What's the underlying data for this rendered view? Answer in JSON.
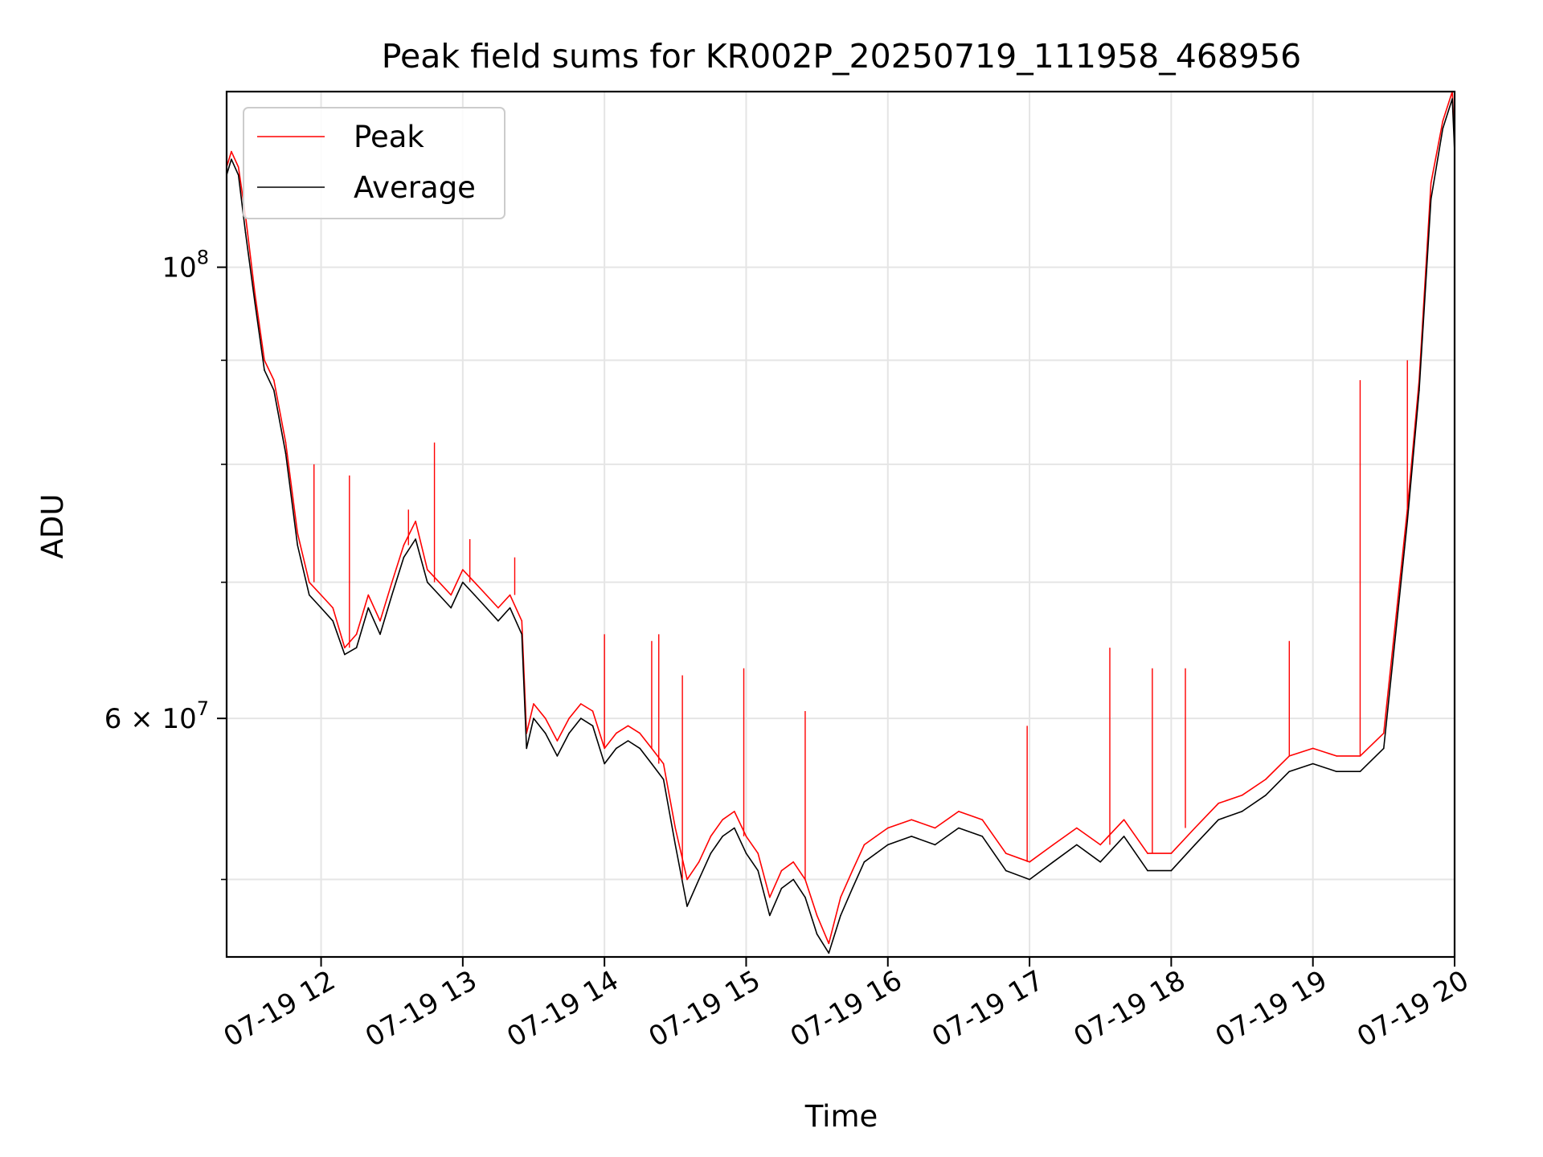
{
  "chart_data": {
    "type": "line",
    "title": "Peak field sums for KR002P_20250719_111958_468956",
    "xlabel": "Time",
    "ylabel": "ADU",
    "yscale": "log",
    "grid": true,
    "legend_position": "upper-left",
    "x_range": [
      "2025-07-19 11:20",
      "2025-07-19 20:00"
    ],
    "y_range": [
      45800000,
      122000000
    ],
    "x_ticks": [
      {
        "value": "2025-07-19 12:00",
        "label": "07-19 12"
      },
      {
        "value": "2025-07-19 13:00",
        "label": "07-19 13"
      },
      {
        "value": "2025-07-19 14:00",
        "label": "07-19 14"
      },
      {
        "value": "2025-07-19 15:00",
        "label": "07-19 15"
      },
      {
        "value": "2025-07-19 16:00",
        "label": "07-19 16"
      },
      {
        "value": "2025-07-19 17:00",
        "label": "07-19 17"
      },
      {
        "value": "2025-07-19 18:00",
        "label": "07-19 18"
      },
      {
        "value": "2025-07-19 19:00",
        "label": "07-19 19"
      },
      {
        "value": "2025-07-19 20:00",
        "label": "07-19 20"
      }
    ],
    "y_major_ticks": [
      {
        "value": 100000000,
        "base": "10",
        "exp": "8",
        "label": "10^8"
      },
      {
        "value": 60000000,
        "mant": "6",
        "base": "10",
        "exp": "7",
        "label": "6 × 10^7"
      }
    ],
    "y_minor_ticks": [
      50000000,
      70000000,
      80000000,
      90000000
    ],
    "series": [
      {
        "name": "Peak",
        "color": "#ff0000",
        "points": [
          [
            "2025-07-19 11:20",
            112000000
          ],
          [
            "2025-07-19 11:22",
            114000000
          ],
          [
            "2025-07-19 11:25",
            112000000
          ],
          [
            "2025-07-19 11:28",
            106000000
          ],
          [
            "2025-07-19 11:32",
            97000000
          ],
          [
            "2025-07-19 11:36",
            90000000
          ],
          [
            "2025-07-19 11:40",
            88000000
          ],
          [
            "2025-07-19 11:45",
            82000000
          ],
          [
            "2025-07-19 11:50",
            74000000
          ],
          [
            "2025-07-19 11:55",
            70000000
          ],
          [
            "2025-07-19 12:00",
            69000000
          ],
          [
            "2025-07-19 12:05",
            68000000
          ],
          [
            "2025-07-19 12:10",
            65000000
          ],
          [
            "2025-07-19 12:15",
            66000000
          ],
          [
            "2025-07-19 12:20",
            69000000
          ],
          [
            "2025-07-19 12:25",
            67000000
          ],
          [
            "2025-07-19 12:30",
            70000000
          ],
          [
            "2025-07-19 12:35",
            73000000
          ],
          [
            "2025-07-19 12:40",
            75000000
          ],
          [
            "2025-07-19 12:45",
            71000000
          ],
          [
            "2025-07-19 12:50",
            70000000
          ],
          [
            "2025-07-19 12:55",
            69000000
          ],
          [
            "2025-07-19 13:00",
            71000000
          ],
          [
            "2025-07-19 13:05",
            70000000
          ],
          [
            "2025-07-19 13:10",
            69000000
          ],
          [
            "2025-07-19 13:15",
            68000000
          ],
          [
            "2025-07-19 13:20",
            69000000
          ],
          [
            "2025-07-19 13:25",
            67000000
          ],
          [
            "2025-07-19 13:27",
            59000000
          ],
          [
            "2025-07-19 13:30",
            61000000
          ],
          [
            "2025-07-19 13:35",
            60000000
          ],
          [
            "2025-07-19 13:40",
            58500000
          ],
          [
            "2025-07-19 13:45",
            60000000
          ],
          [
            "2025-07-19 13:50",
            61000000
          ],
          [
            "2025-07-19 13:55",
            60500000
          ],
          [
            "2025-07-19 14:00",
            58000000
          ],
          [
            "2025-07-19 14:05",
            59000000
          ],
          [
            "2025-07-19 14:10",
            59500000
          ],
          [
            "2025-07-19 14:15",
            59000000
          ],
          [
            "2025-07-19 14:20",
            58000000
          ],
          [
            "2025-07-19 14:25",
            57000000
          ],
          [
            "2025-07-19 14:30",
            53000000
          ],
          [
            "2025-07-19 14:35",
            50000000
          ],
          [
            "2025-07-19 14:40",
            51000000
          ],
          [
            "2025-07-19 14:45",
            52500000
          ],
          [
            "2025-07-19 14:50",
            53500000
          ],
          [
            "2025-07-19 14:55",
            54000000
          ],
          [
            "2025-07-19 15:00",
            52500000
          ],
          [
            "2025-07-19 15:05",
            51500000
          ],
          [
            "2025-07-19 15:10",
            49000000
          ],
          [
            "2025-07-19 15:15",
            50500000
          ],
          [
            "2025-07-19 15:20",
            51000000
          ],
          [
            "2025-07-19 15:25",
            50000000
          ],
          [
            "2025-07-19 15:30",
            48000000
          ],
          [
            "2025-07-19 15:35",
            46500000
          ],
          [
            "2025-07-19 15:40",
            49000000
          ],
          [
            "2025-07-19 15:45",
            50500000
          ],
          [
            "2025-07-19 15:50",
            52000000
          ],
          [
            "2025-07-19 15:55",
            52500000
          ],
          [
            "2025-07-19 16:00",
            53000000
          ],
          [
            "2025-07-19 16:10",
            53500000
          ],
          [
            "2025-07-19 16:20",
            53000000
          ],
          [
            "2025-07-19 16:30",
            54000000
          ],
          [
            "2025-07-19 16:40",
            53500000
          ],
          [
            "2025-07-19 16:50",
            51500000
          ],
          [
            "2025-07-19 17:00",
            51000000
          ],
          [
            "2025-07-19 17:10",
            52000000
          ],
          [
            "2025-07-19 17:20",
            53000000
          ],
          [
            "2025-07-19 17:30",
            52000000
          ],
          [
            "2025-07-19 17:40",
            53500000
          ],
          [
            "2025-07-19 17:50",
            51500000
          ],
          [
            "2025-07-19 18:00",
            51500000
          ],
          [
            "2025-07-19 18:10",
            53000000
          ],
          [
            "2025-07-19 18:20",
            54500000
          ],
          [
            "2025-07-19 18:30",
            55000000
          ],
          [
            "2025-07-19 18:40",
            56000000
          ],
          [
            "2025-07-19 18:50",
            57500000
          ],
          [
            "2025-07-19 19:00",
            58000000
          ],
          [
            "2025-07-19 19:10",
            57500000
          ],
          [
            "2025-07-19 19:20",
            57500000
          ],
          [
            "2025-07-19 19:30",
            59000000
          ],
          [
            "2025-07-19 19:40",
            76000000
          ],
          [
            "2025-07-19 19:45",
            88000000
          ],
          [
            "2025-07-19 19:50",
            110000000
          ],
          [
            "2025-07-19 19:55",
            118000000
          ],
          [
            "2025-07-19 19:59",
            122000000
          ],
          [
            "2025-07-19 20:00",
            115000000
          ]
        ]
      },
      {
        "name": "Average",
        "color": "#000000",
        "points": [
          [
            "2025-07-19 11:20",
            111000000
          ],
          [
            "2025-07-19 11:22",
            113000000
          ],
          [
            "2025-07-19 11:25",
            111000000
          ],
          [
            "2025-07-19 11:28",
            104000000
          ],
          [
            "2025-07-19 11:32",
            96000000
          ],
          [
            "2025-07-19 11:36",
            89000000
          ],
          [
            "2025-07-19 11:40",
            87000000
          ],
          [
            "2025-07-19 11:45",
            81000000
          ],
          [
            "2025-07-19 11:50",
            73000000
          ],
          [
            "2025-07-19 11:55",
            69000000
          ],
          [
            "2025-07-19 12:00",
            68000000
          ],
          [
            "2025-07-19 12:05",
            67000000
          ],
          [
            "2025-07-19 12:10",
            64500000
          ],
          [
            "2025-07-19 12:15",
            65000000
          ],
          [
            "2025-07-19 12:20",
            68000000
          ],
          [
            "2025-07-19 12:25",
            66000000
          ],
          [
            "2025-07-19 12:30",
            69000000
          ],
          [
            "2025-07-19 12:35",
            72000000
          ],
          [
            "2025-07-19 12:40",
            73500000
          ],
          [
            "2025-07-19 12:45",
            70000000
          ],
          [
            "2025-07-19 12:50",
            69000000
          ],
          [
            "2025-07-19 12:55",
            68000000
          ],
          [
            "2025-07-19 13:00",
            70000000
          ],
          [
            "2025-07-19 13:05",
            69000000
          ],
          [
            "2025-07-19 13:10",
            68000000
          ],
          [
            "2025-07-19 13:15",
            67000000
          ],
          [
            "2025-07-19 13:20",
            68000000
          ],
          [
            "2025-07-19 13:25",
            66000000
          ],
          [
            "2025-07-19 13:27",
            58000000
          ],
          [
            "2025-07-19 13:30",
            60000000
          ],
          [
            "2025-07-19 13:35",
            59000000
          ],
          [
            "2025-07-19 13:40",
            57500000
          ],
          [
            "2025-07-19 13:45",
            59000000
          ],
          [
            "2025-07-19 13:50",
            60000000
          ],
          [
            "2025-07-19 13:55",
            59500000
          ],
          [
            "2025-07-19 14:00",
            57000000
          ],
          [
            "2025-07-19 14:05",
            58000000
          ],
          [
            "2025-07-19 14:10",
            58500000
          ],
          [
            "2025-07-19 14:15",
            58000000
          ],
          [
            "2025-07-19 14:20",
            57000000
          ],
          [
            "2025-07-19 14:25",
            56000000
          ],
          [
            "2025-07-19 14:30",
            52000000
          ],
          [
            "2025-07-19 14:35",
            48500000
          ],
          [
            "2025-07-19 14:40",
            50000000
          ],
          [
            "2025-07-19 14:45",
            51500000
          ],
          [
            "2025-07-19 14:50",
            52500000
          ],
          [
            "2025-07-19 14:55",
            53000000
          ],
          [
            "2025-07-19 15:00",
            51500000
          ],
          [
            "2025-07-19 15:05",
            50500000
          ],
          [
            "2025-07-19 15:10",
            48000000
          ],
          [
            "2025-07-19 15:15",
            49500000
          ],
          [
            "2025-07-19 15:20",
            50000000
          ],
          [
            "2025-07-19 15:25",
            49000000
          ],
          [
            "2025-07-19 15:30",
            47000000
          ],
          [
            "2025-07-19 15:35",
            46000000
          ],
          [
            "2025-07-19 15:40",
            48000000
          ],
          [
            "2025-07-19 15:45",
            49500000
          ],
          [
            "2025-07-19 15:50",
            51000000
          ],
          [
            "2025-07-19 15:55",
            51500000
          ],
          [
            "2025-07-19 16:00",
            52000000
          ],
          [
            "2025-07-19 16:10",
            52500000
          ],
          [
            "2025-07-19 16:20",
            52000000
          ],
          [
            "2025-07-19 16:30",
            53000000
          ],
          [
            "2025-07-19 16:40",
            52500000
          ],
          [
            "2025-07-19 16:50",
            50500000
          ],
          [
            "2025-07-19 17:00",
            50000000
          ],
          [
            "2025-07-19 17:10",
            51000000
          ],
          [
            "2025-07-19 17:20",
            52000000
          ],
          [
            "2025-07-19 17:30",
            51000000
          ],
          [
            "2025-07-19 17:40",
            52500000
          ],
          [
            "2025-07-19 17:50",
            50500000
          ],
          [
            "2025-07-19 18:00",
            50500000
          ],
          [
            "2025-07-19 18:10",
            52000000
          ],
          [
            "2025-07-19 18:20",
            53500000
          ],
          [
            "2025-07-19 18:30",
            54000000
          ],
          [
            "2025-07-19 18:40",
            55000000
          ],
          [
            "2025-07-19 18:50",
            56500000
          ],
          [
            "2025-07-19 19:00",
            57000000
          ],
          [
            "2025-07-19 19:10",
            56500000
          ],
          [
            "2025-07-19 19:20",
            56500000
          ],
          [
            "2025-07-19 19:30",
            58000000
          ],
          [
            "2025-07-19 19:40",
            75000000
          ],
          [
            "2025-07-19 19:45",
            87000000
          ],
          [
            "2025-07-19 19:50",
            108000000
          ],
          [
            "2025-07-19 19:55",
            117000000
          ],
          [
            "2025-07-19 19:59",
            121000000
          ],
          [
            "2025-07-19 20:00",
            114000000
          ]
        ]
      }
    ],
    "annotations_spikes": [
      [
        "2025-07-19 11:57",
        80000000
      ],
      [
        "2025-07-19 12:12",
        79000000
      ],
      [
        "2025-07-19 12:37",
        76000000
      ],
      [
        "2025-07-19 12:48",
        82000000
      ],
      [
        "2025-07-19 13:03",
        73500000
      ],
      [
        "2025-07-19 13:22",
        72000000
      ],
      [
        "2025-07-19 14:00",
        66000000
      ],
      [
        "2025-07-19 14:20",
        65500000
      ],
      [
        "2025-07-19 14:23",
        66000000
      ],
      [
        "2025-07-19 14:33",
        63000000
      ],
      [
        "2025-07-19 14:59",
        63500000
      ],
      [
        "2025-07-19 15:25",
        60500000
      ],
      [
        "2025-07-19 16:59",
        59500000
      ],
      [
        "2025-07-19 17:34",
        65000000
      ],
      [
        "2025-07-19 17:52",
        63500000
      ],
      [
        "2025-07-19 18:06",
        63500000
      ],
      [
        "2025-07-19 18:50",
        65500000
      ],
      [
        "2025-07-19 19:20",
        88000000
      ],
      [
        "2025-07-19 19:40",
        90000000
      ]
    ]
  }
}
